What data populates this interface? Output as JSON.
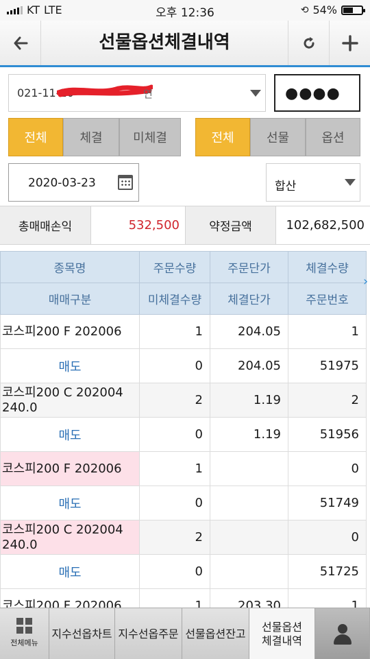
{
  "status": {
    "carrier": "KT",
    "network": "LTE",
    "time": "오후 12:36",
    "battery": "54%",
    "battery_level": 0.54
  },
  "nav": {
    "title": "선물옵션체결내역"
  },
  "account": {
    "value": "021-11-20",
    "suffix": "연",
    "password_mask": "●●●●"
  },
  "filter_status": {
    "items": [
      "전체",
      "체결",
      "미체결"
    ],
    "selected": "전체"
  },
  "filter_type": {
    "items": [
      "전체",
      "선물",
      "옵션"
    ],
    "selected": "전체"
  },
  "date": "2020-03-23",
  "mode": "합산",
  "summary": {
    "pnl_label": "총매매손익",
    "pnl_value": "532,500",
    "contract_label": "약정금액",
    "contract_value": "102,682,500"
  },
  "table": {
    "headers_row1": [
      "종목명",
      "주문수량",
      "주문단가",
      "체결수량"
    ],
    "headers_row2": [
      "매매구분",
      "미체결수량",
      "체결단가",
      "주문번호"
    ],
    "rows": [
      {
        "name": "코스피200 F 202006",
        "order_qty": "1",
        "order_price": "204.05",
        "filled_qty": "1",
        "side": "매도",
        "unfilled_qty": "0",
        "filled_price": "204.05",
        "order_no": "51975"
      },
      {
        "name": "코스피200 C 202004 240.0",
        "order_qty": "2",
        "order_price": "1.19",
        "filled_qty": "2",
        "side": "매도",
        "unfilled_qty": "0",
        "filled_price": "1.19",
        "order_no": "51956"
      },
      {
        "name": "코스피200 F 202006",
        "order_qty": "1",
        "order_price": "",
        "filled_qty": "0",
        "side": "매도",
        "unfilled_qty": "0",
        "filled_price": "",
        "order_no": "51749"
      },
      {
        "name": "코스피200 C 202004 240.0",
        "order_qty": "2",
        "order_price": "",
        "filled_qty": "0",
        "side": "매도",
        "unfilled_qty": "0",
        "filled_price": "",
        "order_no": "51725"
      },
      {
        "name": "코스피200 F 202006",
        "order_qty": "1",
        "order_price": "203.30",
        "filled_qty": "1",
        "side": "",
        "unfilled_qty": "",
        "filled_price": "",
        "order_no": ""
      }
    ]
  },
  "tabbar": {
    "menu_label": "전체메뉴",
    "tabs": [
      "지수선옵차트",
      "지수선옵주문",
      "선물옵션잔고",
      "선물옵션\n체결내역"
    ]
  },
  "colors": {
    "accent": "#2f8cd3",
    "selected": "#f2b733",
    "profit": "#d0242c",
    "side": "#2a6fb5",
    "header": "#d6e4f1"
  }
}
